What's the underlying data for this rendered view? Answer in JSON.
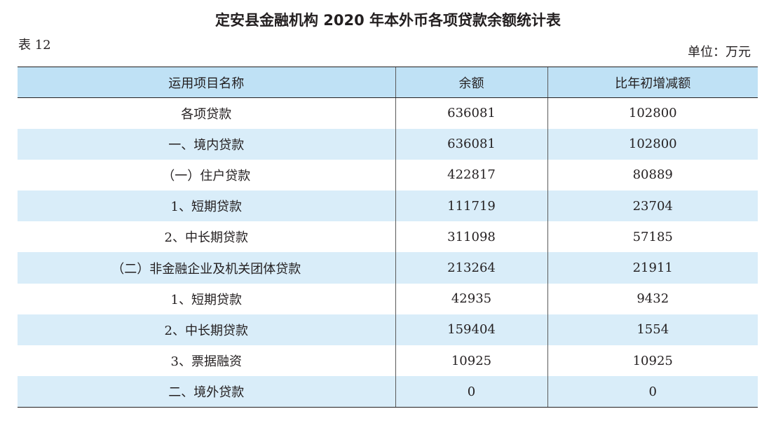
{
  "document": {
    "title": "定安县金融机构 2020 年本外币各项贷款余额统计表",
    "table_number": "表 12",
    "unit": "单位：万元"
  },
  "table": {
    "headers": [
      "运用项目名称",
      "余额",
      "比年初增减额"
    ],
    "rows": [
      {
        "name": "各项贷款",
        "balance": "636081",
        "change": "102800"
      },
      {
        "name": "一、境内贷款",
        "balance": "636081",
        "change": "102800"
      },
      {
        "name": "（一）住户贷款",
        "balance": "422817",
        "change": "80889"
      },
      {
        "name": "1、短期贷款",
        "balance": "111719",
        "change": "23704"
      },
      {
        "name": "2、中长期贷款",
        "balance": "311098",
        "change": "57185"
      },
      {
        "name": "（二）非金融企业及机关团体贷款",
        "balance": "213264",
        "change": "21911"
      },
      {
        "name": "1、短期贷款",
        "balance": "42935",
        "change": "9432"
      },
      {
        "name": "2、中长期贷款",
        "balance": "159404",
        "change": "1554"
      },
      {
        "name": "3、票据融资",
        "balance": "10925",
        "change": "10925"
      },
      {
        "name": "二、境外贷款",
        "balance": "0",
        "change": "0"
      }
    ]
  }
}
